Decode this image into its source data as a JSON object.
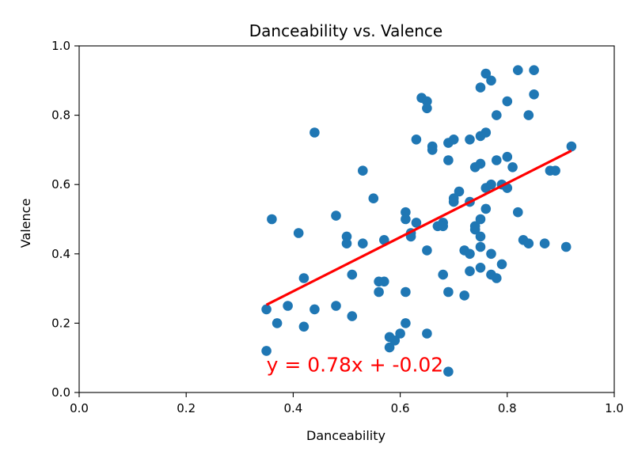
{
  "chart_data": {
    "type": "scatter",
    "title": "Danceability vs. Valence",
    "xlabel": "Danceability",
    "ylabel": "Valence",
    "xlim": [
      0.0,
      1.0
    ],
    "ylim": [
      0.0,
      1.0
    ],
    "xticks": [
      "0.0",
      "0.2",
      "0.4",
      "0.6",
      "0.8",
      "1.0"
    ],
    "yticks": [
      "0.0",
      "0.2",
      "0.4",
      "0.6",
      "0.8",
      "1.0"
    ],
    "grid": false,
    "point_color": "#1f77b4",
    "line_color": "#ff0000",
    "annotation": {
      "text": "y = 0.78x + -0.02",
      "x": 0.35,
      "y": 0.06,
      "color": "#ff0000"
    },
    "fit_line": {
      "slope": 0.78,
      "intercept": -0.02,
      "x_start": 0.35,
      "x_end": 0.92
    },
    "points": [
      [
        0.35,
        0.24
      ],
      [
        0.35,
        0.12
      ],
      [
        0.36,
        0.5
      ],
      [
        0.37,
        0.2
      ],
      [
        0.39,
        0.25
      ],
      [
        0.41,
        0.46
      ],
      [
        0.42,
        0.19
      ],
      [
        0.42,
        0.33
      ],
      [
        0.44,
        0.75
      ],
      [
        0.44,
        0.24
      ],
      [
        0.48,
        0.51
      ],
      [
        0.48,
        0.25
      ],
      [
        0.5,
        0.45
      ],
      [
        0.5,
        0.43
      ],
      [
        0.51,
        0.22
      ],
      [
        0.51,
        0.34
      ],
      [
        0.53,
        0.43
      ],
      [
        0.53,
        0.64
      ],
      [
        0.55,
        0.56
      ],
      [
        0.56,
        0.32
      ],
      [
        0.56,
        0.29
      ],
      [
        0.57,
        0.44
      ],
      [
        0.57,
        0.32
      ],
      [
        0.58,
        0.13
      ],
      [
        0.58,
        0.16
      ],
      [
        0.59,
        0.15
      ],
      [
        0.6,
        0.17
      ],
      [
        0.61,
        0.52
      ],
      [
        0.61,
        0.5
      ],
      [
        0.61,
        0.29
      ],
      [
        0.61,
        0.2
      ],
      [
        0.62,
        0.46
      ],
      [
        0.62,
        0.45
      ],
      [
        0.63,
        0.73
      ],
      [
        0.63,
        0.49
      ],
      [
        0.64,
        0.85
      ],
      [
        0.65,
        0.84
      ],
      [
        0.65,
        0.82
      ],
      [
        0.65,
        0.41
      ],
      [
        0.65,
        0.17
      ],
      [
        0.66,
        0.71
      ],
      [
        0.66,
        0.7
      ],
      [
        0.67,
        0.48
      ],
      [
        0.68,
        0.49
      ],
      [
        0.68,
        0.48
      ],
      [
        0.68,
        0.34
      ],
      [
        0.69,
        0.72
      ],
      [
        0.69,
        0.67
      ],
      [
        0.69,
        0.29
      ],
      [
        0.69,
        0.06
      ],
      [
        0.7,
        0.56
      ],
      [
        0.7,
        0.55
      ],
      [
        0.7,
        0.73
      ],
      [
        0.71,
        0.58
      ],
      [
        0.72,
        0.41
      ],
      [
        0.72,
        0.28
      ],
      [
        0.73,
        0.73
      ],
      [
        0.73,
        0.55
      ],
      [
        0.73,
        0.35
      ],
      [
        0.73,
        0.4
      ],
      [
        0.74,
        0.65
      ],
      [
        0.74,
        0.47
      ],
      [
        0.74,
        0.48
      ],
      [
        0.75,
        0.74
      ],
      [
        0.75,
        0.66
      ],
      [
        0.75,
        0.5
      ],
      [
        0.75,
        0.45
      ],
      [
        0.75,
        0.42
      ],
      [
        0.75,
        0.36
      ],
      [
        0.75,
        0.88
      ],
      [
        0.76,
        0.75
      ],
      [
        0.76,
        0.92
      ],
      [
        0.76,
        0.59
      ],
      [
        0.76,
        0.53
      ],
      [
        0.77,
        0.9
      ],
      [
        0.77,
        0.34
      ],
      [
        0.77,
        0.4
      ],
      [
        0.77,
        0.6
      ],
      [
        0.78,
        0.8
      ],
      [
        0.78,
        0.67
      ],
      [
        0.78,
        0.33
      ],
      [
        0.79,
        0.6
      ],
      [
        0.79,
        0.37
      ],
      [
        0.8,
        0.84
      ],
      [
        0.8,
        0.68
      ],
      [
        0.8,
        0.59
      ],
      [
        0.81,
        0.65
      ],
      [
        0.82,
        0.93
      ],
      [
        0.82,
        0.52
      ],
      [
        0.83,
        0.44
      ],
      [
        0.84,
        0.43
      ],
      [
        0.84,
        0.8
      ],
      [
        0.85,
        0.86
      ],
      [
        0.85,
        0.93
      ],
      [
        0.87,
        0.43
      ],
      [
        0.88,
        0.64
      ],
      [
        0.89,
        0.64
      ],
      [
        0.91,
        0.42
      ],
      [
        0.92,
        0.71
      ]
    ]
  }
}
